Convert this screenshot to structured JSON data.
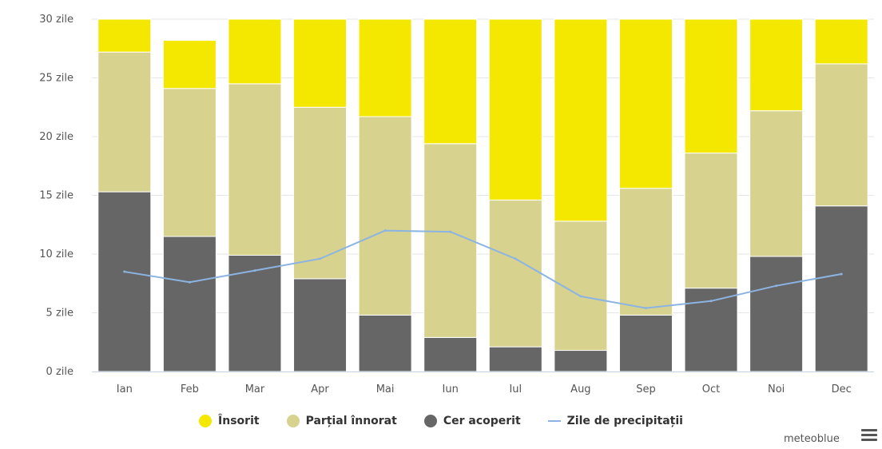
{
  "chart_data": {
    "type": "bar",
    "stacked": true,
    "categories": [
      "Ian",
      "Feb",
      "Mar",
      "Apr",
      "Mai",
      "Iun",
      "Iul",
      "Aug",
      "Sep",
      "Oct",
      "Noi",
      "Dec"
    ],
    "series": [
      {
        "name": "Cer acoperit",
        "color": "#666666",
        "values": [
          15.3,
          11.5,
          9.9,
          7.9,
          4.8,
          2.9,
          2.1,
          1.8,
          4.8,
          7.1,
          9.8,
          14.1
        ]
      },
      {
        "name": "Parțial înnorat",
        "color": "#d8d28f",
        "values": [
          11.9,
          12.6,
          14.6,
          14.6,
          16.9,
          16.5,
          12.5,
          11.0,
          10.8,
          11.5,
          12.4,
          12.1
        ]
      },
      {
        "name": "Însorit",
        "color": "#f5e800",
        "values": [
          2.8,
          4.1,
          5.5,
          7.5,
          8.3,
          10.6,
          15.4,
          17.2,
          14.4,
          11.4,
          7.8,
          3.8
        ]
      }
    ],
    "line_series": {
      "name": "Zile de precipitații",
      "color": "#8bb4e2",
      "values": [
        8.5,
        7.6,
        8.6,
        9.6,
        12.0,
        11.9,
        9.6,
        6.4,
        5.4,
        6.0,
        7.3,
        8.3
      ]
    },
    "ylim": [
      0,
      30
    ],
    "yticks": [
      "0 zile",
      "5 zile",
      "10 zile",
      "15 zile",
      "20 zile",
      "25 zile",
      "30 zile"
    ],
    "ytick_values": [
      0,
      5,
      10,
      15,
      20,
      25,
      30
    ],
    "grid": true,
    "legend_position": "bottom"
  },
  "legend": [
    {
      "label": "Însorit",
      "color": "#f5e800"
    },
    {
      "label": "Parțial înnorat",
      "color": "#d8d28f"
    },
    {
      "label": "Cer acoperit",
      "color": "#666666"
    },
    {
      "label": "Zile de precipitații",
      "color": "#8bb4e2"
    }
  ],
  "credit": "meteoblue",
  "menu_icon": "hamburger-menu-icon"
}
